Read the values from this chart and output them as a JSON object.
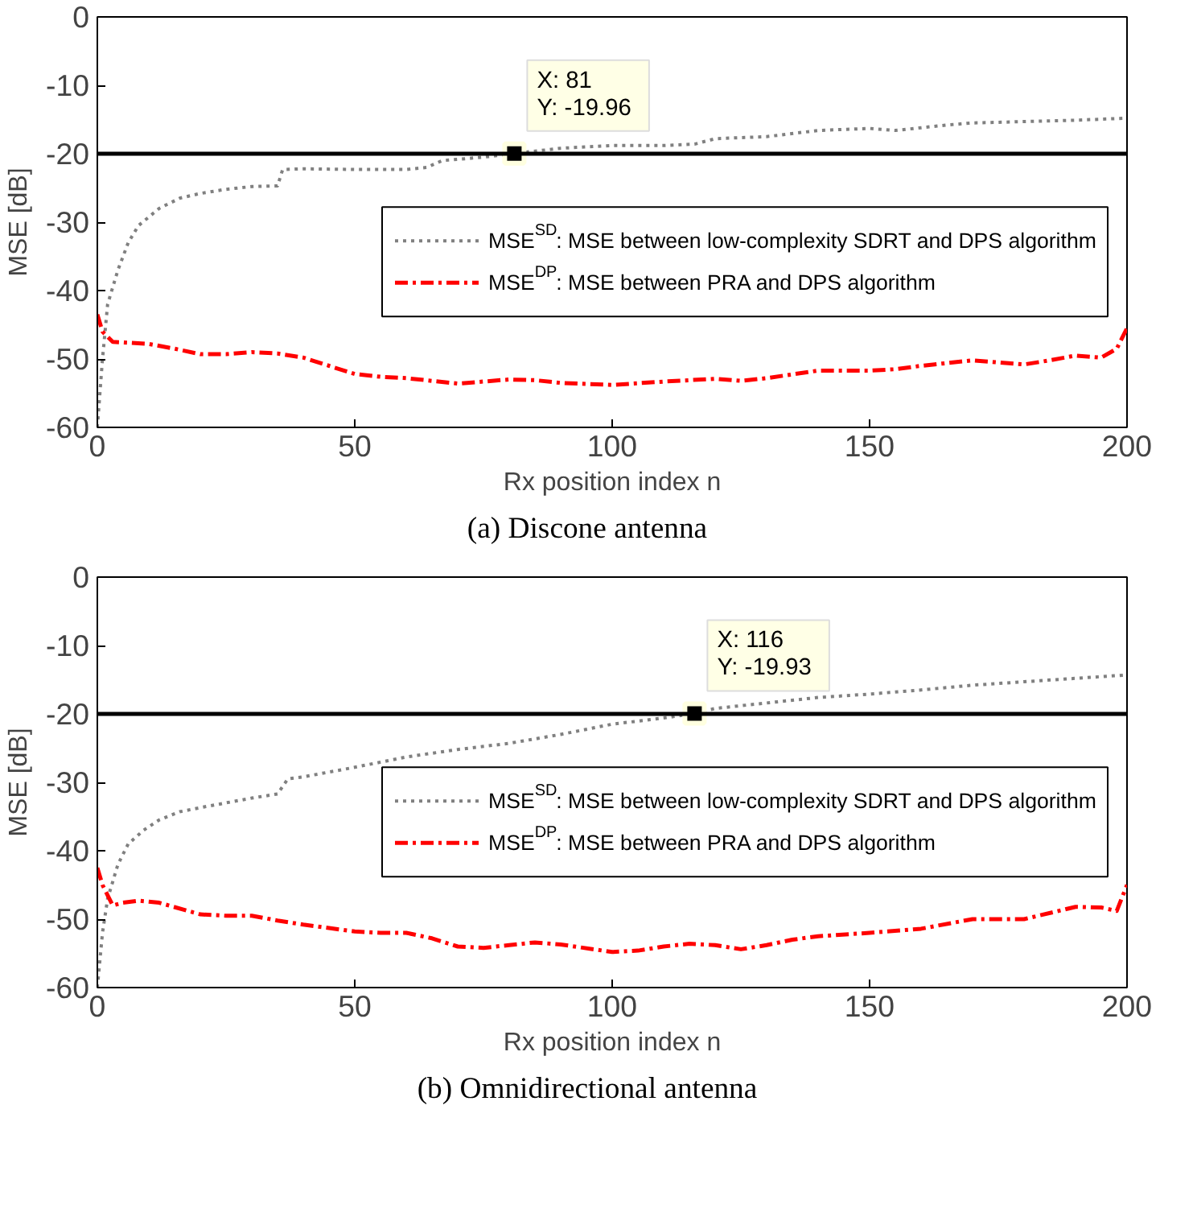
{
  "chart_data": [
    {
      "type": "line",
      "xlabel": "Rx position index n",
      "ylabel": "MSE [dB]",
      "xlim": [
        0,
        200
      ],
      "ylim": [
        -60,
        0
      ],
      "xticks": [
        0,
        50,
        100,
        150,
        200
      ],
      "yticks": [
        0,
        -10,
        -20,
        -30,
        -40,
        -50,
        -60
      ],
      "grid": false,
      "legend": "right",
      "marker": "none",
      "series": [
        {
          "name": "MSE$^{SD}$: MSE between low-complexity SDRT and DPS algorithm",
          "color": "#808080",
          "line_style": "dotted",
          "x": [
            0,
            1,
            2,
            4,
            6,
            8,
            12,
            16,
            20,
            25,
            30,
            35,
            36,
            40,
            50,
            60,
            64,
            67,
            75,
            81,
            90,
            100,
            110,
            116,
            120,
            130,
            140,
            150,
            155,
            160,
            165,
            170,
            180,
            190,
            200
          ],
          "values": [
            -60,
            -50,
            -42,
            -37,
            -33,
            -30.5,
            -28,
            -26.5,
            -25.8,
            -25.2,
            -24.8,
            -24.7,
            -22.3,
            -22.2,
            -22.3,
            -22.3,
            -22,
            -21,
            -20.5,
            -19.96,
            -19.2,
            -18.8,
            -18.8,
            -18.6,
            -17.8,
            -17.5,
            -16.6,
            -16.3,
            -16.6,
            -16.2,
            -15.8,
            -15.5,
            -15.3,
            -15.1,
            -14.8
          ]
        },
        {
          "name": "MSE$^{DP}$: MSE between PRA and DPS algorithm",
          "color": "#ff0000",
          "line_style": "dashdot",
          "x": [
            0,
            1,
            3,
            10,
            15,
            20,
            25,
            30,
            35,
            40,
            45,
            50,
            55,
            60,
            65,
            70,
            75,
            80,
            85,
            90,
            100,
            110,
            120,
            125,
            130,
            140,
            150,
            155,
            160,
            170,
            180,
            185,
            190,
            195,
            198,
            200
          ],
          "values": [
            -43.5,
            -46,
            -47.5,
            -47.8,
            -48.5,
            -49.3,
            -49.3,
            -49,
            -49.2,
            -49.8,
            -51,
            -52.2,
            -52.6,
            -52.8,
            -53.2,
            -53.6,
            -53.3,
            -53,
            -53.1,
            -53.5,
            -53.8,
            -53.3,
            -52.9,
            -53.2,
            -52.8,
            -51.7,
            -51.7,
            -51.5,
            -51,
            -50.2,
            -50.8,
            -50.2,
            -49.5,
            -49.8,
            -48.5,
            -45.5
          ]
        }
      ],
      "ref_lines": [
        {
          "axis": "y",
          "value": -20,
          "color": "#000000"
        }
      ],
      "annotations": [
        {
          "text": "X: 81\nY: -19.96",
          "x": 81,
          "y": -19.96
        },
        "(a) Discone antenna"
      ]
    },
    {
      "type": "line",
      "xlabel": "Rx position index n",
      "ylabel": "MSE [dB]",
      "xlim": [
        0,
        200
      ],
      "ylim": [
        -60,
        0
      ],
      "xticks": [
        0,
        50,
        100,
        150,
        200
      ],
      "yticks": [
        0,
        -10,
        -20,
        -30,
        -40,
        -50,
        -60
      ],
      "grid": false,
      "legend": "right",
      "marker": "none",
      "series": [
        {
          "name": "MSE$^{SD}$: MSE between low-complexity SDRT and DPS algorithm",
          "color": "#808080",
          "line_style": "dotted",
          "x": [
            0,
            1,
            2,
            4,
            6,
            9,
            12,
            16,
            20,
            25,
            30,
            35,
            37,
            40,
            50,
            60,
            70,
            80,
            90,
            100,
            110,
            116,
            120,
            130,
            140,
            150,
            160,
            170,
            180,
            190,
            200
          ],
          "values": [
            -60,
            -52,
            -47,
            -42,
            -39,
            -37,
            -35.5,
            -34.3,
            -33.7,
            -33,
            -32.3,
            -31.7,
            -29.5,
            -29.2,
            -27.8,
            -26.3,
            -25.2,
            -24.3,
            -23,
            -21.5,
            -20.6,
            -19.93,
            -19.2,
            -18.4,
            -17.6,
            -17.1,
            -16.5,
            -15.8,
            -15.3,
            -14.8,
            -14.3
          ]
        },
        {
          "name": "MSE$^{DP}$: MSE between PRA and DPS algorithm",
          "color": "#ff0000",
          "line_style": "dashdot",
          "x": [
            0,
            1,
            3,
            5,
            8,
            12,
            20,
            25,
            30,
            35,
            40,
            50,
            55,
            60,
            65,
            70,
            75,
            80,
            85,
            90,
            100,
            105,
            110,
            115,
            120,
            125,
            130,
            135,
            140,
            150,
            160,
            170,
            180,
            190,
            195,
            198,
            200
          ],
          "values": [
            -42.5,
            -45,
            -48,
            -47.6,
            -47.3,
            -47.6,
            -49.3,
            -49.5,
            -49.5,
            -50.2,
            -50.8,
            -51.8,
            -52,
            -52,
            -52.8,
            -54,
            -54.2,
            -53.8,
            -53.4,
            -53.7,
            -54.8,
            -54.6,
            -54,
            -53.6,
            -53.8,
            -54.4,
            -53.8,
            -53,
            -52.5,
            -52,
            -51.4,
            -50,
            -50,
            -48.2,
            -48.3,
            -48.8,
            -45
          ]
        }
      ],
      "ref_lines": [
        {
          "axis": "y",
          "value": -20,
          "color": "#000000"
        }
      ],
      "annotations": [
        {
          "text": "X: 116\nY: -19.93",
          "x": 116,
          "y": -19.93
        },
        "(b) Omnidirectional antenna"
      ]
    }
  ]
}
